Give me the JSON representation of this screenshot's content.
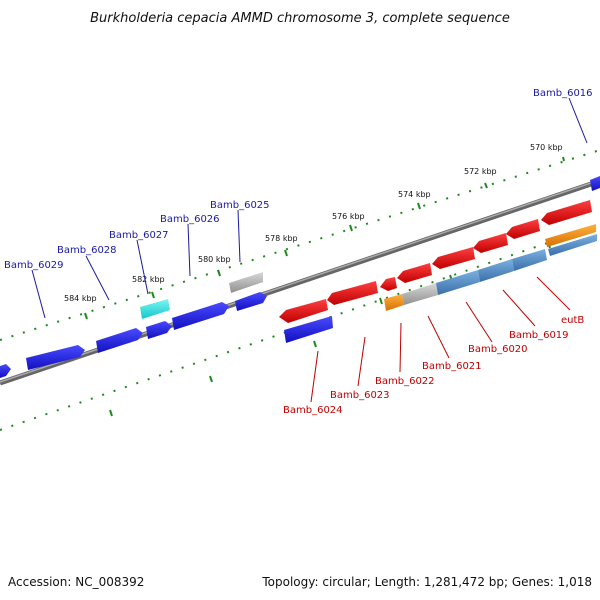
{
  "title": "Burkholderia cepacia AMMD chromosome 3, complete sequence",
  "footer": {
    "accession": "Accession: NC_008392",
    "topology": "Topology: circular; Length: 1,281,472 bp; Genes: 1,018"
  },
  "ticks": [
    "570 kbp",
    "572 kbp",
    "574 kbp",
    "576 kbp",
    "578 kbp",
    "580 kbp",
    "582 kbp",
    "584 kbp"
  ],
  "colors": {
    "blue": "#1a1ae6",
    "cyan": "#22e0e0",
    "gray": "#a8a8a8",
    "red": "#e01010",
    "orange": "#ee8a10",
    "steel": "#4a86c0",
    "backbone": "#777777",
    "tick": "#1e8a1e",
    "label_blue": "#1a1aa6",
    "label_red": "#c00000"
  },
  "upper_labels": [
    "Bamb_6016",
    "Bamb_6025",
    "Bamb_6026",
    "Bamb_6027",
    "Bamb_6028",
    "Bamb_6029"
  ],
  "lower_labels": [
    "Bamb_6024",
    "Bamb_6023",
    "Bamb_6022",
    "Bamb_6021",
    "Bamb_6020",
    "Bamb_6019",
    "eutB"
  ]
}
